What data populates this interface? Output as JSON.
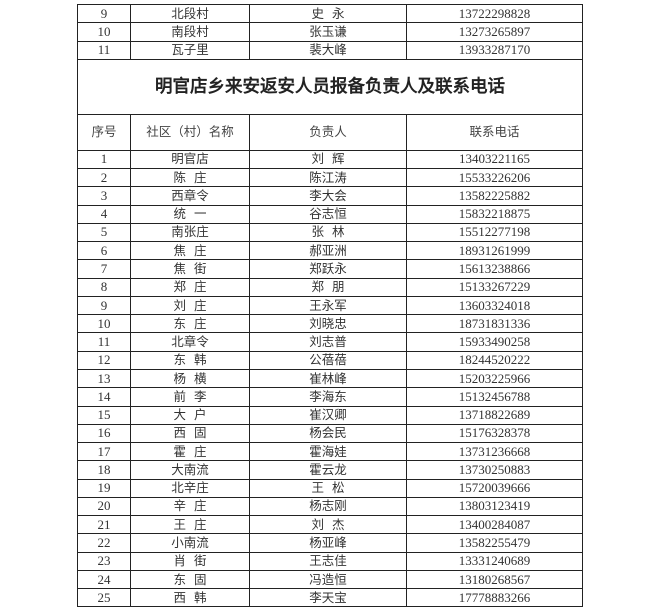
{
  "prev_rows": [
    {
      "no": "9",
      "village": "北段村",
      "person": "史  永",
      "phone": "13722298828"
    },
    {
      "no": "10",
      "village": "南段村",
      "person": "张玉谦",
      "phone": "13273265897"
    },
    {
      "no": "11",
      "village": "瓦子里",
      "person": "裴大峰",
      "phone": "13933287170"
    }
  ],
  "title": "明官店乡来安返安人员报备负责人及联系电话",
  "headers": {
    "no": "序号",
    "village": "社区（村）名称",
    "person": "负责人",
    "phone": "联系电话"
  },
  "rows": [
    {
      "no": "1",
      "village": "明官店",
      "person": "刘  辉",
      "phone": "13403221165"
    },
    {
      "no": "2",
      "village": "陈  庄",
      "person": "陈江涛",
      "phone": "15533226206"
    },
    {
      "no": "3",
      "village": "西章令",
      "person": "李大会",
      "phone": "13582225882"
    },
    {
      "no": "4",
      "village": "统  一",
      "person": "谷志恒",
      "phone": "15832218875"
    },
    {
      "no": "5",
      "village": "南张庄",
      "person": "张  林",
      "phone": "15512277198"
    },
    {
      "no": "6",
      "village": "焦  庄",
      "person": "郝亚洲",
      "phone": "18931261999"
    },
    {
      "no": "7",
      "village": "焦  街",
      "person": "郑跃永",
      "phone": "15613238866"
    },
    {
      "no": "8",
      "village": "郑  庄",
      "person": "郑  朋",
      "phone": "15133267229"
    },
    {
      "no": "9",
      "village": "刘  庄",
      "person": "王永军",
      "phone": "13603324018"
    },
    {
      "no": "10",
      "village": "东  庄",
      "person": "刘晓忠",
      "phone": "18731831336"
    },
    {
      "no": "11",
      "village": "北章令",
      "person": "刘志普",
      "phone": "15933490258"
    },
    {
      "no": "12",
      "village": "东  韩",
      "person": "公蓓蓓",
      "phone": "18244520222"
    },
    {
      "no": "13",
      "village": "杨  横",
      "person": "崔林峰",
      "phone": "15203225966"
    },
    {
      "no": "14",
      "village": "前  李",
      "person": "李海东",
      "phone": "15132456788"
    },
    {
      "no": "15",
      "village": "大  户",
      "person": "崔汉卿",
      "phone": "13718822689"
    },
    {
      "no": "16",
      "village": "西  固",
      "person": "杨会民",
      "phone": "15176328378"
    },
    {
      "no": "17",
      "village": "霍  庄",
      "person": "霍海娃",
      "phone": "13731236668"
    },
    {
      "no": "18",
      "village": "大南流",
      "person": "霍云龙",
      "phone": "13730250883"
    },
    {
      "no": "19",
      "village": "北辛庄",
      "person": "王  松",
      "phone": "15720039666"
    },
    {
      "no": "20",
      "village": "辛  庄",
      "person": "杨志刚",
      "phone": "13803123419"
    },
    {
      "no": "21",
      "village": "王  庄",
      "person": "刘  杰",
      "phone": "13400284087"
    },
    {
      "no": "22",
      "village": "小南流",
      "person": "杨亚峰",
      "phone": "13582255479"
    },
    {
      "no": "23",
      "village": "肖  街",
      "person": "王志佳",
      "phone": "13331240689"
    },
    {
      "no": "24",
      "village": "东  固",
      "person": "冯造恒",
      "phone": "13180268567"
    },
    {
      "no": "25",
      "village": "西  韩",
      "person": "李天宝",
      "phone": "17778883266"
    }
  ]
}
